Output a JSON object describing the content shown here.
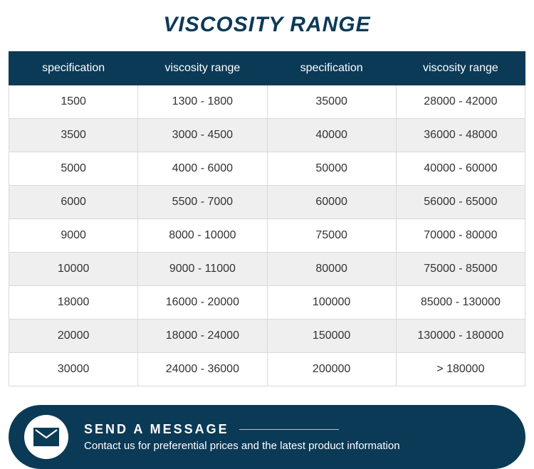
{
  "title": {
    "text": "VISCOSITY RANGE",
    "color": "#0b3a57",
    "fontsize": 30
  },
  "table": {
    "header_bg": "#0b3a57",
    "header_text_color": "#ffffff",
    "header_fontsize": 16,
    "row_bg_odd": "#ffffff",
    "row_bg_even": "#efefef",
    "cell_text_color": "#333333",
    "cell_fontsize": 16,
    "border_color": "#d9d9d9",
    "columns": [
      "specification",
      "viscosity range",
      "specification",
      "viscosity range"
    ],
    "rows": [
      [
        "1500",
        "1300 - 1800",
        "35000",
        "28000 - 42000"
      ],
      [
        "3500",
        "3000 - 4500",
        "40000",
        "36000 - 48000"
      ],
      [
        "5000",
        "4000 - 6000",
        "50000",
        "40000 - 60000"
      ],
      [
        "6000",
        "5500 - 7000",
        "60000",
        "56000 - 65000"
      ],
      [
        "9000",
        "8000 - 10000",
        "75000",
        "70000 - 80000"
      ],
      [
        "10000",
        "9000 - 11000",
        "80000",
        "75000 - 85000"
      ],
      [
        "18000",
        "16000 - 20000",
        "100000",
        "85000 - 130000"
      ],
      [
        "20000",
        "18000 - 24000",
        "150000",
        "130000 - 180000"
      ],
      [
        "30000",
        "24000 - 36000",
        "200000",
        "> 180000"
      ]
    ]
  },
  "cta": {
    "bg": "#0b3a57",
    "title": "SEND A MESSAGE",
    "title_fontsize": 18,
    "subtitle": "Contact us for preferential prices and the latest product information",
    "subtitle_fontsize": 15,
    "icon_fill": "#0b3a57"
  }
}
